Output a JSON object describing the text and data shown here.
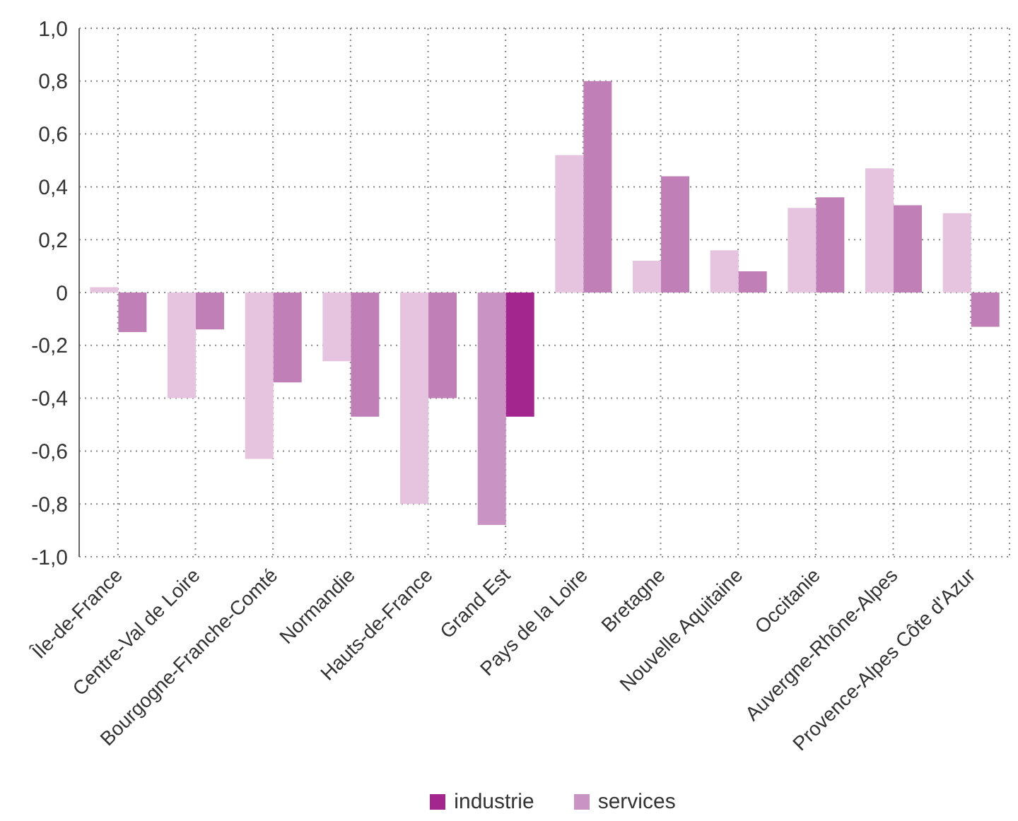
{
  "chart_data": {
    "type": "bar",
    "categories": [
      "Île-de-France",
      "Centre-Val de Loire",
      "Bourgogne-Franche-Comté",
      "Normandie",
      "Hauts-de-France",
      "Grand Est",
      "Pays de la Loire",
      "Bretagne",
      "Nouvelle Aquitaine",
      "Occitanie",
      "Auvergne-Rhône-Alpes",
      "Provence-Alpes Côte d'Azur"
    ],
    "series": [
      {
        "name": "services",
        "color": "#c994c4",
        "colors": [
          "#e6c3df",
          "#e6c3df",
          "#e6c3df",
          "#e6c3df",
          "#e6c3df",
          "#c994c4",
          "#e6c3df",
          "#e6c3df",
          "#e6c3df",
          "#e6c3df",
          "#e6c3df",
          "#e6c3df"
        ],
        "values": [
          0.02,
          -0.4,
          -0.63,
          -0.26,
          -0.8,
          -0.88,
          0.52,
          0.12,
          0.16,
          0.32,
          0.47,
          0.3
        ]
      },
      {
        "name": "industrie",
        "color": "#a3258e",
        "colors": [
          "#c17fb8",
          "#c17fb8",
          "#c17fb8",
          "#c17fb8",
          "#c17fb8",
          "#a3258e",
          "#c17fb8",
          "#c17fb8",
          "#c17fb8",
          "#c17fb8",
          "#c17fb8",
          "#c17fb8"
        ],
        "values": [
          -0.15,
          -0.14,
          -0.34,
          -0.47,
          -0.4,
          -0.47,
          0.8,
          0.44,
          0.08,
          0.36,
          0.33,
          -0.13
        ]
      }
    ],
    "ylim": [
      -1,
      1
    ],
    "yticks": [
      {
        "value": -1,
        "label": "-1,0"
      },
      {
        "value": -0.8,
        "label": "-0,8"
      },
      {
        "value": -0.6,
        "label": "-0,6"
      },
      {
        "value": -0.4,
        "label": "-0,4"
      },
      {
        "value": -0.2,
        "label": "-0,2"
      },
      {
        "value": 0,
        "label": "0"
      },
      {
        "value": 0.2,
        "label": "0,2"
      },
      {
        "value": 0.4,
        "label": "0,4"
      },
      {
        "value": 0.6,
        "label": "0,6"
      },
      {
        "value": 0.8,
        "label": "0,8"
      },
      {
        "value": 1,
        "label": "1,0"
      }
    ],
    "grid": true,
    "legend": "bottom"
  }
}
